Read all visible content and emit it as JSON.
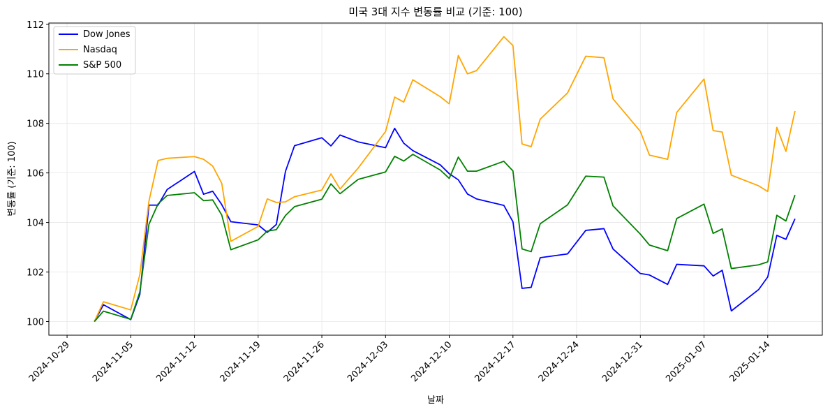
{
  "chart_data": {
    "type": "line",
    "title": "미국 3대 지수 변동률 비교 (기준: 100)",
    "xlabel": "날짜",
    "ylabel": "변동률 (기준: 100)",
    "xlim": [
      "2024-10-27",
      "2025-01-20"
    ],
    "ylim": [
      99.45,
      112.05
    ],
    "x_ticks": [
      "2024-10-29",
      "2024-11-05",
      "2024-11-12",
      "2024-11-19",
      "2024-11-26",
      "2024-12-03",
      "2024-12-10",
      "2024-12-17",
      "2024-12-24",
      "2024-12-31",
      "2025-01-07",
      "2025-01-14"
    ],
    "y_ticks": [
      100,
      102,
      104,
      106,
      108,
      110,
      112
    ],
    "grid": true,
    "legend_position": "top-left",
    "x": [
      "2024-11-01",
      "2024-11-02",
      "2024-11-05",
      "2024-11-06",
      "2024-11-07",
      "2024-11-08",
      "2024-11-09",
      "2024-11-12",
      "2024-11-13",
      "2024-11-14",
      "2024-11-15",
      "2024-11-16",
      "2024-11-19",
      "2024-11-20",
      "2024-11-21",
      "2024-11-22",
      "2024-11-23",
      "2024-11-26",
      "2024-11-27",
      "2024-11-28",
      "2024-11-30",
      "2024-12-03",
      "2024-12-04",
      "2024-12-05",
      "2024-12-06",
      "2024-12-09",
      "2024-12-10",
      "2024-12-11",
      "2024-12-12",
      "2024-12-13",
      "2024-12-16",
      "2024-12-17",
      "2024-12-18",
      "2024-12-19",
      "2024-12-20",
      "2024-12-23",
      "2024-12-25",
      "2024-12-27",
      "2024-12-28",
      "2024-12-31",
      "2025-01-01",
      "2025-01-03",
      "2025-01-04",
      "2025-01-07",
      "2025-01-08",
      "2025-01-09",
      "2025-01-10",
      "2025-01-13",
      "2025-01-14",
      "2025-01-15",
      "2025-01-16",
      "2025-01-17"
    ],
    "series": [
      {
        "name": "Dow Jones",
        "color": "#0000ff",
        "values": [
          100.0,
          100.68,
          100.08,
          101.1,
          104.7,
          104.7,
          105.33,
          106.06,
          105.14,
          105.26,
          104.72,
          104.03,
          103.9,
          103.6,
          103.92,
          106.06,
          107.1,
          107.42,
          107.09,
          107.53,
          107.25,
          107.02,
          107.8,
          107.2,
          106.9,
          106.33,
          105.97,
          105.72,
          105.15,
          104.95,
          104.69,
          104.03,
          101.34,
          101.38,
          102.58,
          102.73,
          103.68,
          103.75,
          102.93,
          101.94,
          101.88,
          101.5,
          102.31,
          102.25,
          101.84,
          102.07,
          100.43,
          101.29,
          101.8,
          103.48,
          103.32,
          104.15
        ]
      },
      {
        "name": "Nasdaq",
        "color": "#ffa500",
        "values": [
          100.0,
          100.8,
          100.47,
          101.9,
          104.86,
          106.5,
          106.59,
          106.66,
          106.55,
          106.28,
          105.58,
          103.24,
          103.84,
          104.95,
          104.81,
          104.83,
          105.04,
          105.31,
          105.96,
          105.35,
          106.2,
          107.67,
          109.06,
          108.86,
          109.76,
          109.08,
          108.79,
          110.74,
          110.0,
          110.13,
          111.5,
          111.14,
          107.17,
          107.06,
          108.17,
          109.23,
          110.71,
          110.65,
          108.99,
          107.68,
          106.72,
          106.55,
          108.44,
          109.79,
          107.71,
          107.65,
          105.91,
          105.48,
          105.25,
          107.84,
          106.87,
          108.5
        ]
      },
      {
        "name": "S&P 500",
        "color": "#008000",
        "values": [
          100.0,
          100.42,
          100.09,
          101.2,
          103.93,
          104.75,
          105.09,
          105.2,
          104.88,
          104.91,
          104.3,
          102.9,
          103.3,
          103.65,
          103.71,
          104.28,
          104.64,
          104.94,
          105.56,
          105.16,
          105.74,
          106.04,
          106.67,
          106.48,
          106.75,
          106.12,
          105.78,
          106.64,
          106.07,
          106.07,
          106.47,
          106.08,
          102.93,
          102.82,
          103.95,
          104.71,
          105.87,
          105.83,
          104.67,
          103.53,
          103.09,
          102.86,
          104.16,
          104.74,
          103.56,
          103.74,
          102.14,
          102.29,
          102.41,
          104.29,
          104.06,
          105.11
        ]
      }
    ]
  }
}
